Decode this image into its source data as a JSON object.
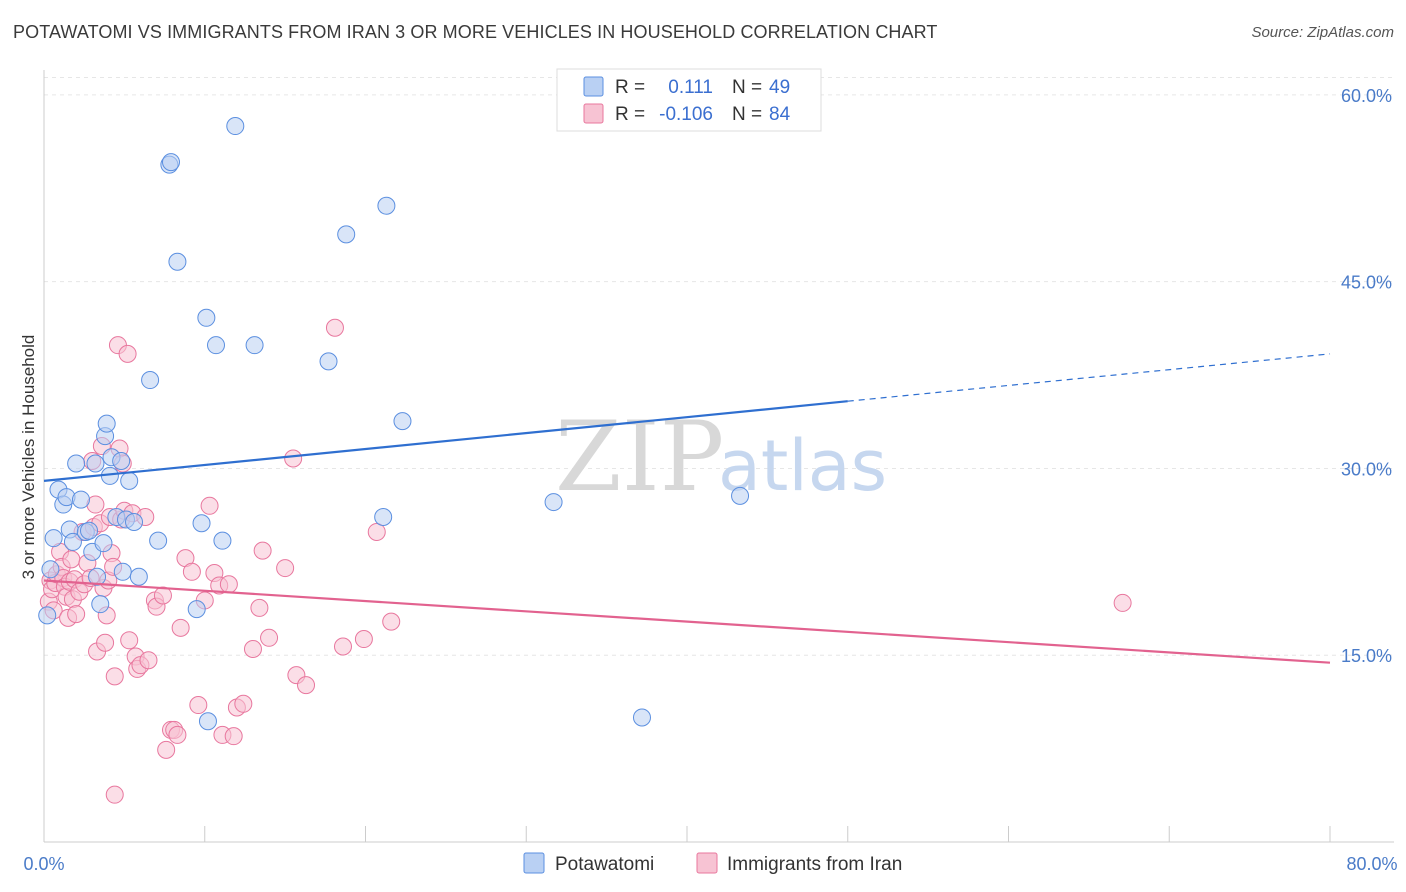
{
  "header": {
    "title": "POTAWATOMI VS IMMIGRANTS FROM IRAN 3 OR MORE VEHICLES IN HOUSEHOLD CORRELATION CHART",
    "source": "Source: ZipAtlas.com"
  },
  "watermark": {
    "zip": "ZIP",
    "atlas": "atlas"
  },
  "colors": {
    "blue": "#5b8fe0",
    "blue_fill": "#b9d0f3",
    "blue_line": "#2f6fd0",
    "pink": "#e8779e",
    "pink_fill": "#f7c3d3",
    "pink_line": "#e2628f",
    "grid": "#e6e6e6",
    "axis_text": "#4a7bc8"
  },
  "chart_data": {
    "type": "scatter",
    "title": "POTAWATOMI VS IMMIGRANTS FROM IRAN 3 OR MORE VEHICLES IN HOUSEHOLD CORRELATION CHART",
    "xlabel": "",
    "ylabel": "3 or more Vehicles in Household",
    "xlim": [
      0,
      80
    ],
    "ylim": [
      0,
      62
    ],
    "x_tick_labels": [
      "0.0%",
      "80.0%"
    ],
    "y_ticks": [
      15,
      30,
      45,
      60
    ],
    "y_tick_labels": [
      "15.0%",
      "30.0%",
      "45.0%",
      "60.0%"
    ],
    "grid": true,
    "legend": {
      "position": "top-center",
      "entries": [
        {
          "r_label": "R =",
          "r_value": "0.111",
          "n_label": "N =",
          "n_value": "49"
        },
        {
          "r_label": "R =",
          "r_value": "-0.106",
          "n_label": "N =",
          "n_value": "84"
        }
      ]
    },
    "series": [
      {
        "name": "Potawatomi",
        "color": "#5b8fe0",
        "trend": {
          "x0": 0,
          "y0": 29.0,
          "x1": 50,
          "y1": 35.4,
          "dashed_to_x": 80,
          "dashed_to_y": 39.2
        },
        "points": [
          [
            0.2,
            18.2
          ],
          [
            0.4,
            21.9
          ],
          [
            0.6,
            24.4
          ],
          [
            0.9,
            28.3
          ],
          [
            1.2,
            27.1
          ],
          [
            1.4,
            27.7
          ],
          [
            1.6,
            25.1
          ],
          [
            1.8,
            24.1
          ],
          [
            2.0,
            30.4
          ],
          [
            2.3,
            27.5
          ],
          [
            2.6,
            24.9
          ],
          [
            2.8,
            25.0
          ],
          [
            3.0,
            23.3
          ],
          [
            3.2,
            30.4
          ],
          [
            3.3,
            21.3
          ],
          [
            3.5,
            19.1
          ],
          [
            3.7,
            24.0
          ],
          [
            3.8,
            32.6
          ],
          [
            3.9,
            33.6
          ],
          [
            4.1,
            29.4
          ],
          [
            4.2,
            30.9
          ],
          [
            4.5,
            26.1
          ],
          [
            4.8,
            30.6
          ],
          [
            4.9,
            21.7
          ],
          [
            5.1,
            25.9
          ],
          [
            5.3,
            29.0
          ],
          [
            5.6,
            25.7
          ],
          [
            5.9,
            21.3
          ],
          [
            6.6,
            37.1
          ],
          [
            7.1,
            24.2
          ],
          [
            7.8,
            54.4
          ],
          [
            7.9,
            54.6
          ],
          [
            8.3,
            46.6
          ],
          [
            9.5,
            18.7
          ],
          [
            9.8,
            25.6
          ],
          [
            10.1,
            42.1
          ],
          [
            10.2,
            9.7
          ],
          [
            10.7,
            39.9
          ],
          [
            11.1,
            24.2
          ],
          [
            11.9,
            57.5
          ],
          [
            13.1,
            39.9
          ],
          [
            17.7,
            38.6
          ],
          [
            18.8,
            48.8
          ],
          [
            21.1,
            26.1
          ],
          [
            21.3,
            51.1
          ],
          [
            22.3,
            33.8
          ],
          [
            31.7,
            27.3
          ],
          [
            37.2,
            10.0
          ],
          [
            43.3,
            27.8
          ]
        ]
      },
      {
        "name": "Immigrants from Iran",
        "color": "#e8779e",
        "trend": {
          "x0": 0,
          "y0": 21.0,
          "x1": 80,
          "y1": 14.4
        },
        "points": [
          [
            0.3,
            19.3
          ],
          [
            0.4,
            21.0
          ],
          [
            0.5,
            20.3
          ],
          [
            0.6,
            18.6
          ],
          [
            0.7,
            20.8
          ],
          [
            0.8,
            21.5
          ],
          [
            1.0,
            23.3
          ],
          [
            1.1,
            22.1
          ],
          [
            1.2,
            21.2
          ],
          [
            1.3,
            20.5
          ],
          [
            1.4,
            19.7
          ],
          [
            1.5,
            18.0
          ],
          [
            1.6,
            20.9
          ],
          [
            1.7,
            22.7
          ],
          [
            1.8,
            19.5
          ],
          [
            1.9,
            21.1
          ],
          [
            2.0,
            18.3
          ],
          [
            2.2,
            20.1
          ],
          [
            2.4,
            24.9
          ],
          [
            2.5,
            20.7
          ],
          [
            2.7,
            22.4
          ],
          [
            2.9,
            21.2
          ],
          [
            3.0,
            30.6
          ],
          [
            3.1,
            25.3
          ],
          [
            3.2,
            27.1
          ],
          [
            3.3,
            15.3
          ],
          [
            3.5,
            25.6
          ],
          [
            3.6,
            31.8
          ],
          [
            3.7,
            20.4
          ],
          [
            3.8,
            16.0
          ],
          [
            3.9,
            18.2
          ],
          [
            4.0,
            21.0
          ],
          [
            4.1,
            26.1
          ],
          [
            4.2,
            23.2
          ],
          [
            4.3,
            22.1
          ],
          [
            4.4,
            13.3
          ],
          [
            4.6,
            39.9
          ],
          [
            4.7,
            31.6
          ],
          [
            4.8,
            25.9
          ],
          [
            4.9,
            30.4
          ],
          [
            5.0,
            26.6
          ],
          [
            5.2,
            39.2
          ],
          [
            5.3,
            16.2
          ],
          [
            5.5,
            26.4
          ],
          [
            5.7,
            14.9
          ],
          [
            5.8,
            13.9
          ],
          [
            6.0,
            14.2
          ],
          [
            6.3,
            26.1
          ],
          [
            6.5,
            14.6
          ],
          [
            6.9,
            19.4
          ],
          [
            7.0,
            18.9
          ],
          [
            7.4,
            19.8
          ],
          [
            7.6,
            7.4
          ],
          [
            7.9,
            9.0
          ],
          [
            8.1,
            9.0
          ],
          [
            8.3,
            8.6
          ],
          [
            8.5,
            17.2
          ],
          [
            8.8,
            22.8
          ],
          [
            9.2,
            21.7
          ],
          [
            9.6,
            11.0
          ],
          [
            10.0,
            19.4
          ],
          [
            10.3,
            27.0
          ],
          [
            10.6,
            21.6
          ],
          [
            10.9,
            20.6
          ],
          [
            11.1,
            8.6
          ],
          [
            11.5,
            20.7
          ],
          [
            11.8,
            8.5
          ],
          [
            12.0,
            10.8
          ],
          [
            12.4,
            11.1
          ],
          [
            13.0,
            15.5
          ],
          [
            13.4,
            18.8
          ],
          [
            13.6,
            23.4
          ],
          [
            14.0,
            16.4
          ],
          [
            15.0,
            22.0
          ],
          [
            15.5,
            30.8
          ],
          [
            15.7,
            13.4
          ],
          [
            16.3,
            12.6
          ],
          [
            18.1,
            41.3
          ],
          [
            18.6,
            15.7
          ],
          [
            19.9,
            16.3
          ],
          [
            20.7,
            24.9
          ],
          [
            21.6,
            17.7
          ],
          [
            4.4,
            3.8
          ],
          [
            67.1,
            19.2
          ]
        ]
      }
    ]
  },
  "bottom_legend": {
    "items": [
      {
        "label": "Potawatomi"
      },
      {
        "label": "Immigrants from Iran"
      }
    ]
  }
}
